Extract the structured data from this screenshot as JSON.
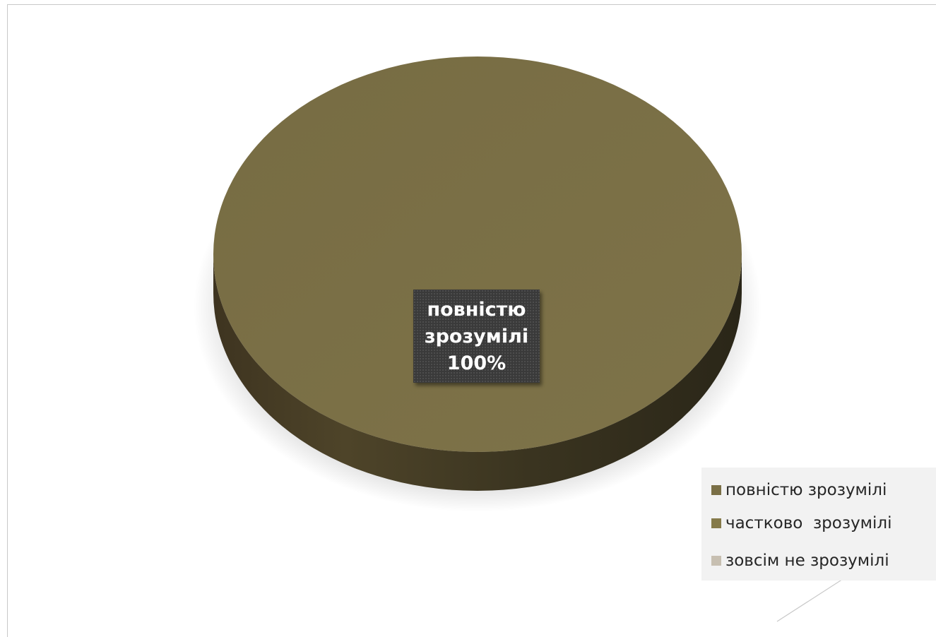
{
  "chart_data": {
    "type": "pie",
    "categories": [
      "повністю зрозумілі",
      "частково  зрозумілі",
      "зовсім не зрозумілі"
    ],
    "values": [
      100,
      0,
      0
    ],
    "colors": [
      "#7a6f46",
      "#857a4a",
      "#c7bfb1"
    ],
    "data_label": {
      "line1": "повністю",
      "line2": "зрозумілі",
      "line3": "100%"
    },
    "legend": [
      "повністю зрозумілі",
      "частково  зрозумілі",
      "зовсім не зрозумілі"
    ],
    "legend_position": "bottom-right",
    "style": "3d"
  }
}
